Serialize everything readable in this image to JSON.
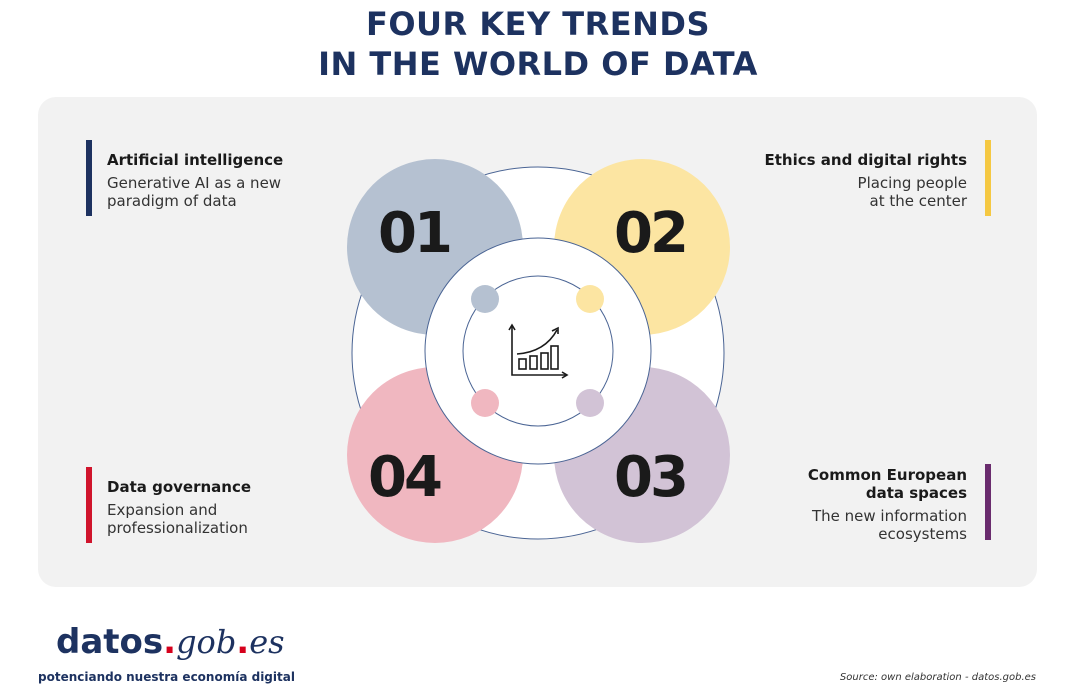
{
  "title": {
    "line1": "FOUR KEY TRENDS",
    "line2": "IN THE WORLD OF DATA"
  },
  "trends": [
    {
      "number": "01",
      "heading": "Artificial intelligence",
      "desc1": "Generative AI as a new",
      "desc2": "paradigm of data",
      "color": "#b5c1d1",
      "bar_color": "#1d3260"
    },
    {
      "number": "02",
      "heading": "Ethics and digital rights",
      "desc1": "Placing people",
      "desc2": "at the center",
      "color": "#fce5a2",
      "bar_color": "#f5c842"
    },
    {
      "number": "03",
      "heading1": "Common European",
      "heading2": "data spaces",
      "desc1": "The new information",
      "desc2": "ecosystems",
      "color": "#d2c3d6",
      "bar_color": "#6a2c6e"
    },
    {
      "number": "04",
      "heading": "Data governance",
      "desc1": "Expansion and",
      "desc2": "professionalization",
      "color": "#f0b7c0",
      "bar_color": "#d0142c"
    }
  ],
  "center_icon": "growth-chart-icon",
  "logo": {
    "part1": "datos",
    "dot": ".",
    "part2": "gob",
    "part3": "es",
    "tagline": "potenciando nuestra economía digital"
  },
  "source": "Source: own elaboration - datos.gob.es"
}
